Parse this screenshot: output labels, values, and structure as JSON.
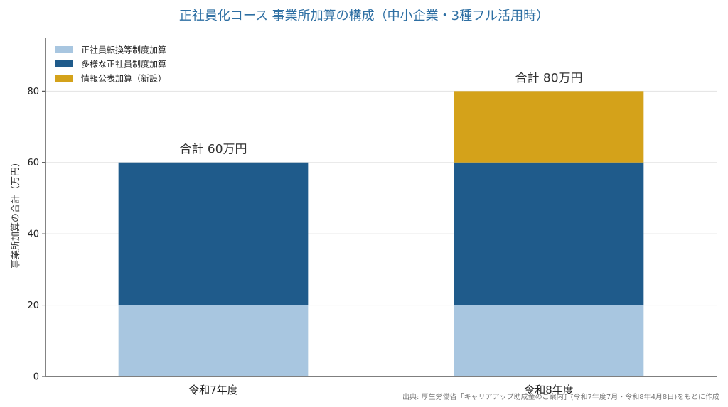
{
  "chart_data": {
    "type": "bar",
    "stacked": true,
    "title": "正社員化コース 事業所加算の構成（中小企業・3種フル活用時）",
    "xlabel": "",
    "ylabel": "事業所加算の合計（万円）",
    "ylim": [
      0,
      95
    ],
    "yticks": [
      0,
      20,
      40,
      60,
      80
    ],
    "categories": [
      "令和7年度",
      "令和8年度"
    ],
    "series": [
      {
        "name": "正社員転換等制度加算",
        "values": [
          20,
          20
        ],
        "color": "#a8c6e0"
      },
      {
        "name": "多様な正社員制度加算",
        "values": [
          40,
          40
        ],
        "color": "#1f5b8b"
      },
      {
        "name": "情報公表加算（新設）",
        "values": [
          0,
          20
        ],
        "color": "#d4a21a"
      }
    ],
    "totals": [
      "合計 60万円",
      "合計 80万円"
    ],
    "legend_position": "top-left",
    "grid": "y",
    "source": "出典: 厚生労働省「キャリアアップ助成金のご案内」(令和7年度7月・令和8年4月8日)をもとに作成"
  }
}
